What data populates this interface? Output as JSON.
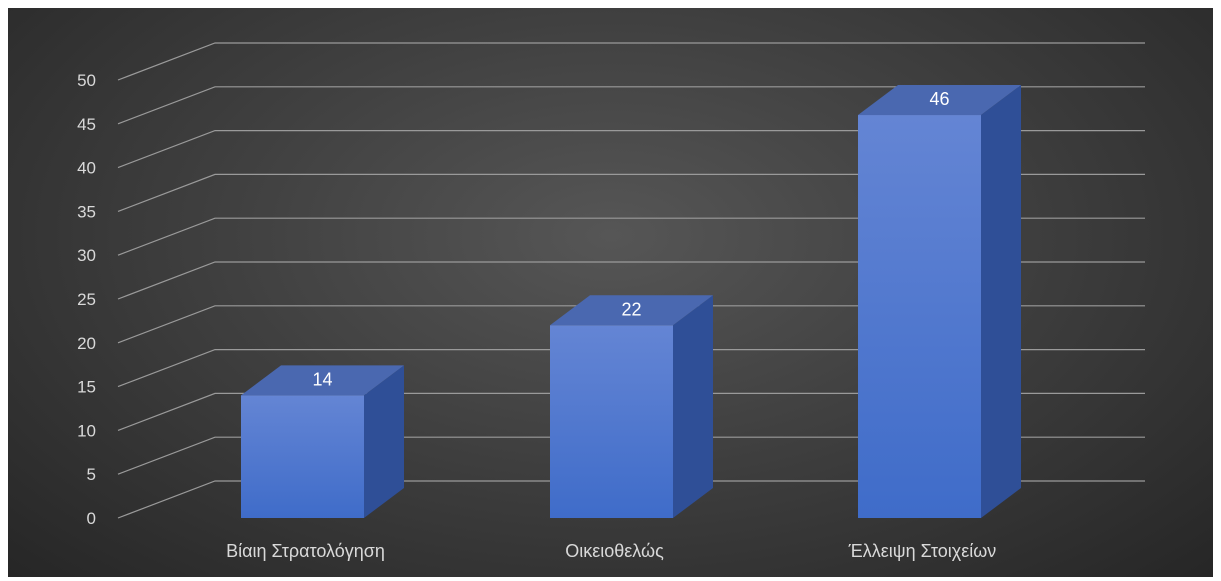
{
  "chart_data": {
    "type": "bar",
    "style": "3d-column",
    "categories": [
      "Βίαιη Στρατολόγηση",
      "Οικειοθελώς",
      "Έλλειψη Στοιχείων"
    ],
    "values": [
      14,
      22,
      46
    ],
    "data_labels": [
      "14",
      "22",
      "46"
    ],
    "y_ticks": [
      "0",
      "5",
      "10",
      "15",
      "20",
      "25",
      "30",
      "35",
      "40",
      "45",
      "50"
    ],
    "ylim": [
      0,
      50
    ],
    "y_step": 5,
    "grid": true,
    "legend": "none",
    "colors": {
      "bar_front_top": "#6485d4",
      "bar_front_bottom": "#3f6cc9",
      "bar_top": "#4a68b0",
      "bar_side": "#2f4f97",
      "background": "#404040",
      "grid": "#9a9a9a",
      "text": "#d9d9d9"
    }
  }
}
